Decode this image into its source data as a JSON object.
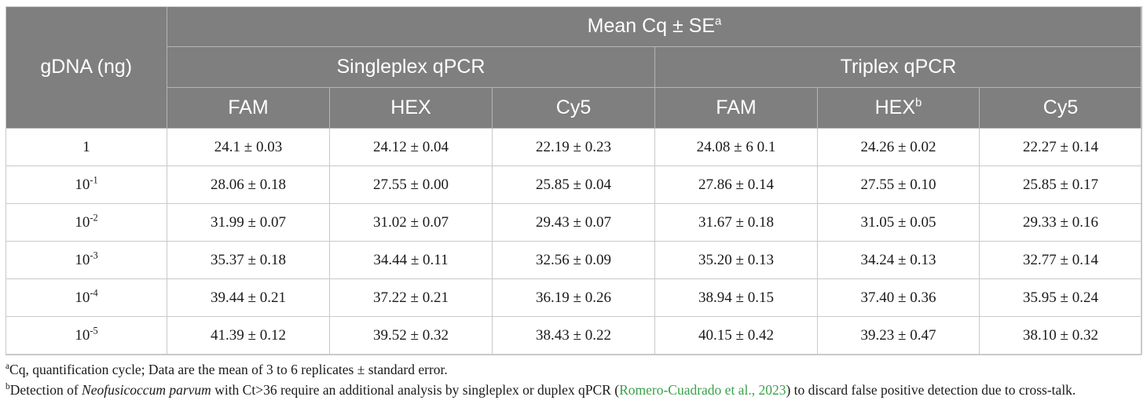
{
  "header": {
    "row_label": "gDNA (ng)",
    "mean_label": "Mean Cq ± SE",
    "mean_sup": "a",
    "groups": [
      "Singleplex qPCR",
      "Triplex qPCR"
    ],
    "channels": [
      {
        "label": "FAM",
        "sup": ""
      },
      {
        "label": "HEX",
        "sup": ""
      },
      {
        "label": "Cy5",
        "sup": ""
      },
      {
        "label": "FAM",
        "sup": ""
      },
      {
        "label": "HEX",
        "sup": "b"
      },
      {
        "label": "Cy5",
        "sup": ""
      }
    ]
  },
  "rows": [
    {
      "base": "1",
      "exp": "",
      "values": [
        "24.1 ± 0.03",
        "24.12 ± 0.04",
        "22.19 ± 0.23",
        "24.08 ± 6 0.1",
        "24.26 ± 0.02",
        "22.27 ± 0.14"
      ]
    },
    {
      "base": "10",
      "exp": "-1",
      "values": [
        "28.06 ± 0.18",
        "27.55 ± 0.00",
        "25.85 ± 0.04",
        "27.86 ± 0.14",
        "27.55 ± 0.10",
        "25.85 ± 0.17"
      ]
    },
    {
      "base": "10",
      "exp": "-2",
      "values": [
        "31.99 ± 0.07",
        "31.02 ± 0.07",
        "29.43 ± 0.07",
        "31.67 ± 0.18",
        "31.05 ± 0.05",
        "29.33 ± 0.16"
      ]
    },
    {
      "base": "10",
      "exp": "-3",
      "values": [
        "35.37 ± 0.18",
        "34.44 ± 0.11",
        "32.56 ± 0.09",
        "35.20 ± 0.13",
        "34.24 ± 0.13",
        "32.77 ± 0.14"
      ]
    },
    {
      "base": "10",
      "exp": "-4",
      "values": [
        "39.44 ± 0.21",
        "37.22 ± 0.21",
        "36.19 ± 0.26",
        "38.94 ± 0.15",
        "37.40 ± 0.36",
        "35.95 ± 0.24"
      ]
    },
    {
      "base": "10",
      "exp": "-5",
      "values": [
        "41.39 ± 0.12",
        "39.52 ± 0.32",
        "38.43 ± 0.22",
        "40.15 ± 0.42",
        "39.23 ± 0.47",
        "38.10 ± 0.32"
      ]
    }
  ],
  "footnotes": {
    "a": {
      "mark": "a",
      "text": "Cq, quantification cycle; Data are the mean of 3 to 6 replicates ± standard error."
    },
    "b": {
      "mark": "b",
      "pre": "Detection of ",
      "species": "Neofusicoccum parvum",
      "mid": " with Ct>36 require an additional analysis by singleplex or duplex qPCR (",
      "citation": "Romero-Cuadrado et al., 2023",
      "post": ") to discard false positive detection due to cross-talk."
    }
  }
}
